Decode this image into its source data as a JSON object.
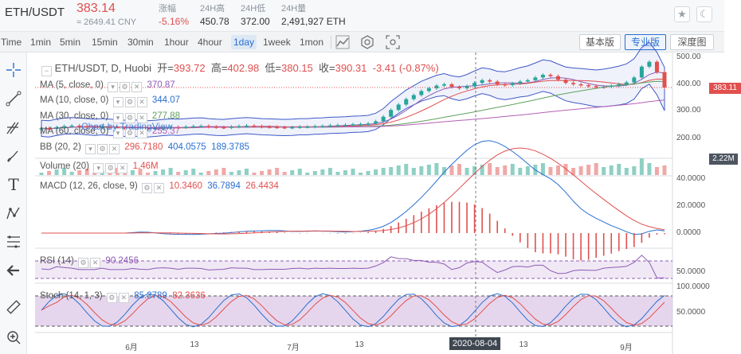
{
  "ticker": {
    "pair": "ETH/USDT",
    "price": "383.14",
    "cny": "≈ 2649.41 CNY",
    "change_label": "涨幅",
    "change_value": "-5.16%",
    "high_label": "24H高",
    "high_value": "450.78",
    "low_label": "24H低",
    "low_value": "372.00",
    "vol_label": "24H量",
    "vol_value": "2,491,927 ETH",
    "star_icon": "star-icon",
    "moon_icon": "moon-icon"
  },
  "toolbar": {
    "intervals": [
      "Time",
      "1min",
      "5min",
      "15min",
      "30min",
      "1hour",
      "4hour",
      "1day",
      "1week",
      "1mon"
    ],
    "active_interval": "1day",
    "versions": [
      "基本版",
      "专业版",
      "深度图"
    ],
    "active_version": "专业版",
    "icons": [
      "candle-style-icon",
      "indicator-settings-icon",
      "screenshot-icon"
    ]
  },
  "left_tools": [
    "crosshair-icon",
    "trend-line-icon",
    "pitchfork-icon",
    "brush-icon",
    "text-icon",
    "pattern-icon",
    "fib-icon",
    "back-arrow-icon",
    "ruler-icon",
    "zoom-in-icon"
  ],
  "legend": {
    "symbol": "ETH/USDT, D, Huobi",
    "o_label": "开=",
    "o": "393.72",
    "h_label": "高=",
    "h": "402.98",
    "l_label": "低=",
    "l": "380.15",
    "c_label": "收=",
    "c": "390.31",
    "chg": "-3.41 (-0.87%)",
    "ma5_label": "MA (5, close, 0)",
    "ma5": "370.87",
    "ma10_label": "MA (10, close, 0)",
    "ma10": "344.07",
    "ma30_label": "MA (30, close, 0)",
    "ma30": "277.88",
    "ma60_label": "MA (60, close, 0)",
    "ma60": "255.37",
    "bb_label": "BB (20, 2)",
    "bb1": "296.7180",
    "bb2": "404.0575",
    "bb3": "189.3785",
    "vol_label": "Volume (20)",
    "vol": "1.46M",
    "macd_label": "MACD (12, 26, close, 9)",
    "macd1": "10.3460",
    "macd2": "36.7894",
    "macd3": "26.4434",
    "rsi_label": "RSI (14)",
    "rsi": "90.2456",
    "stoch_label": "Stoch (14, 1, 3)",
    "stoch1": "85.3789",
    "stoch2": "82.3636",
    "watermark": "Chart by TradingView"
  },
  "price_axis": [
    "500.00",
    "400.00",
    "300.00",
    "200.00"
  ],
  "price_tag": "383.11",
  "vol_tag": "2.22M",
  "macd_axis": [
    "40.0000",
    "20.0000",
    "0.0000"
  ],
  "rsi_axis": [
    "50.0000"
  ],
  "stoch_axis": [
    "100.0000",
    "50.0000"
  ],
  "x_axis": [
    "6月",
    "13",
    "7月",
    "13",
    "13",
    "9月"
  ],
  "crosshair_date": "2020-08-04",
  "colors": {
    "up": "#26a69a",
    "down": "#e0504f",
    "accent": "#2a6fcf",
    "ma5": "#8c5bb5",
    "ma10": "#e0504f",
    "ma30": "#5fa15f",
    "ma60": "#b65fb5",
    "bb": "#3d58c7"
  },
  "chart_data": {
    "type": "line",
    "title": "",
    "xlabel": "",
    "ylabel": "",
    "close_series": [
      232,
      230,
      236,
      240,
      242,
      240,
      238,
      236,
      238,
      236,
      234,
      232,
      233,
      232,
      230,
      232,
      235,
      237,
      236,
      238,
      240,
      241,
      238,
      236,
      235,
      238,
      240,
      242,
      240,
      238,
      237,
      236,
      235,
      236,
      238,
      238,
      240,
      241,
      243,
      244,
      245,
      247,
      248,
      250,
      258,
      275,
      300,
      320,
      340,
      355,
      370,
      380,
      390,
      395,
      385,
      380,
      388,
      400,
      410,
      405,
      395,
      392,
      398,
      405,
      410,
      420,
      430,
      425,
      412,
      400,
      395,
      392,
      388,
      384,
      386,
      390,
      395,
      402,
      420,
      460,
      478,
      440,
      383
    ],
    "ylim": [
      150,
      520
    ]
  }
}
